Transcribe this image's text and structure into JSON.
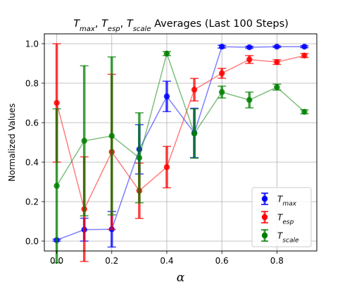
{
  "chart_data": {
    "type": "line",
    "title": {
      "parts": [
        {
          "text": "T",
          "sub": "max"
        },
        {
          "text": ", "
        },
        {
          "text": "T",
          "sub": "esp"
        },
        {
          "text": ", "
        },
        {
          "text": "T",
          "sub": "scale"
        },
        {
          "text": " Averages (Last 100 Steps)"
        }
      ]
    },
    "xlabel": "α",
    "ylabel": "Normalized Values",
    "xlim": [
      -0.045,
      0.945
    ],
    "ylim": [
      -0.05,
      1.05
    ],
    "xticks": [
      0.0,
      0.2,
      0.4,
      0.6,
      0.8
    ],
    "xtick_labels": [
      "0.0",
      "0.2",
      "0.4",
      "0.6",
      "0.8"
    ],
    "yticks": [
      0.0,
      0.2,
      0.4,
      0.6,
      0.8,
      1.0
    ],
    "ytick_labels": [
      "0.0",
      "0.2",
      "0.4",
      "0.6",
      "0.8",
      "1.0"
    ],
    "grid": true,
    "legend_position": "bottom-right",
    "x": [
      0.0,
      0.1,
      0.2,
      0.3,
      0.4,
      0.5,
      0.6,
      0.7,
      0.8,
      0.9
    ],
    "series": [
      {
        "name": "T",
        "name_sub": "max",
        "color": "#0000ff",
        "values": [
          0.005,
          0.058,
          0.06,
          0.465,
          0.733,
          0.548,
          0.985,
          0.982,
          0.985,
          0.985
        ],
        "err": [
          0.005,
          0.058,
          0.09,
          0.125,
          0.077,
          0.125,
          0.007,
          0.005,
          0.004,
          0.005
        ]
      },
      {
        "name": "T",
        "name_sub": "esp",
        "color": "#ff0000",
        "values": [
          0.7,
          0.162,
          0.452,
          0.255,
          0.375,
          0.767,
          0.85,
          0.92,
          0.907,
          0.94
        ],
        "err": [
          0.3,
          0.265,
          0.393,
          0.14,
          0.105,
          0.057,
          0.025,
          0.02,
          0.012,
          0.01
        ]
      },
      {
        "name": "T",
        "name_sub": "scale",
        "color": "#008000",
        "values": [
          0.28,
          0.508,
          0.533,
          0.422,
          0.95,
          0.545,
          0.755,
          0.715,
          0.78,
          0.655
        ],
        "err": [
          0.39,
          0.38,
          0.4,
          0.228,
          0.01,
          0.125,
          0.03,
          0.04,
          0.015,
          0.01
        ]
      }
    ]
  }
}
